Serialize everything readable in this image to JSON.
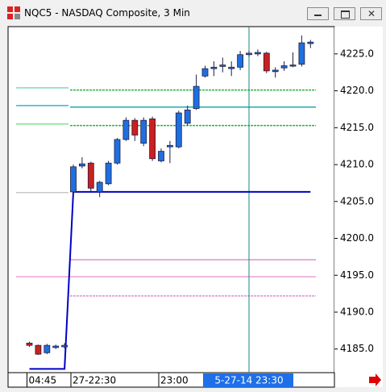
{
  "window_title": "NQC5 - NASDAQ Composite, 3 Min",
  "chart_data": {
    "type": "candlestick",
    "categories": [
      "04:45",
      null,
      null,
      null,
      null,
      "27-22:30",
      null,
      null,
      null,
      null,
      null,
      null,
      null,
      null,
      null,
      "23:00",
      null,
      null,
      null,
      null,
      null,
      null,
      null,
      null,
      null,
      "5-27-14 23:30",
      null,
      null,
      null,
      null,
      null,
      null,
      null
    ],
    "open": [
      4185.8,
      4185.5,
      4184.5,
      4185.2,
      4185.3,
      4206.3,
      4209.8,
      4210.2,
      4206.3,
      4207.4,
      4210.2,
      4213.4,
      4216,
      4212.9,
      4216.2,
      4210.5,
      4212.4,
      4212.4,
      4215.6,
      4217.6,
      4222,
      4223,
      4223.3,
      4223,
      4223.2,
      4224.9,
      4225,
      4225.1,
      4222.6,
      4223.1,
      4223.4,
      4223.6,
      4226.4
    ],
    "high": [
      4186,
      4185.6,
      4185.7,
      4185.6,
      4185.8,
      4210,
      4211,
      4210.4,
      4207.8,
      4210.5,
      4213.6,
      4216.4,
      4216.3,
      4216.4,
      4216.5,
      4212.2,
      4213.2,
      4217.3,
      4218,
      4222.2,
      4223.4,
      4224,
      4224.5,
      4224,
      4225.4,
      4225.4,
      4225.6,
      4225.3,
      4223.2,
      4224,
      4225.2,
      4227.5,
      4226.9
    ],
    "low": [
      4185.3,
      4184.2,
      4184.3,
      4185,
      4185.1,
      4206,
      4209.5,
      4206.2,
      4205.6,
      4207.2,
      4210,
      4213.2,
      4213.2,
      4212.5,
      4210.5,
      4210.3,
      4210.2,
      4212.2,
      4215.3,
      4217.4,
      4221.8,
      4222,
      4222.5,
      4222,
      4222.8,
      4224.6,
      4224.7,
      4222.4,
      4221.8,
      4222.7,
      4223.2,
      4223.3,
      4225.8
    ],
    "close": [
      4185.5,
      4184.3,
      4185.5,
      4185.4,
      4185.5,
      4209.7,
      4210.1,
      4206.8,
      4207.6,
      4210.2,
      4213.4,
      4216,
      4214,
      4216,
      4210.8,
      4211.8,
      4212.6,
      4217,
      4217.4,
      4220.6,
      4223,
      4223.2,
      4223.5,
      4223.2,
      4224.9,
      4225.1,
      4225.2,
      4222.7,
      4222.8,
      4223.4,
      4223.5,
      4226.5,
      4226.6
    ],
    "up_color": "#1f6fe0",
    "down_color": "#cc1f1f",
    "line": {
      "color": "#0000c8",
      "values": [
        4182.3,
        4182.3,
        4182.3,
        4182.3,
        4182.3,
        4206.3,
        4206.3,
        4206.3,
        4206.3,
        4206.3,
        4206.3,
        4206.3,
        4206.3,
        4206.3,
        4206.3,
        4206.3,
        4206.3,
        4206.3,
        4206.3,
        4206.3,
        4206.3,
        4206.3,
        4206.3,
        4206.3,
        4206.3,
        4206.3,
        4206.3,
        4206.3,
        4206.3,
        4206.3,
        4206.3,
        4206.3,
        4206.3
      ]
    },
    "levels": [
      {
        "value": 4220.4,
        "color": "#80d8c8",
        "span": "pre"
      },
      {
        "value": 4220.1,
        "color": "#30b040",
        "span": "day",
        "dashed": true
      },
      {
        "value": 4218.0,
        "color": "#30b8c8",
        "span": "pre"
      },
      {
        "value": 4217.8,
        "color": "#20a8b0",
        "span": "day"
      },
      {
        "value": 4215.5,
        "color": "#80e090",
        "span": "pre"
      },
      {
        "value": 4215.3,
        "color": "#30b040",
        "span": "day",
        "dashed": true
      },
      {
        "value": 4206.2,
        "color": "#c8c8c8",
        "span": "pre"
      },
      {
        "value": 4197.1,
        "color": "#e090c8",
        "span": "day"
      },
      {
        "value": 4194.8,
        "color": "#f0a0d8",
        "span": "pre"
      },
      {
        "value": 4194.8,
        "color": "#e8a0d8",
        "span": "day"
      },
      {
        "value": 4192.2,
        "color": "#e090c8",
        "span": "day",
        "dashed": true
      }
    ],
    "crosshair_index": 25,
    "ylim": [
      4181.8,
      4228.7
    ],
    "yticks": [
      {
        "value": 4185,
        "label": "4185.0"
      },
      {
        "value": 4190,
        "label": "4190.0"
      },
      {
        "value": 4195,
        "label": "4195.0"
      },
      {
        "value": 4200,
        "label": "4200.0"
      },
      {
        "value": 4205,
        "label": "4205.0"
      },
      {
        "value": 4210,
        "label": "4210.0"
      },
      {
        "value": 4215,
        "label": "4215.0"
      },
      {
        "value": 4220,
        "label": "4220.0"
      },
      {
        "value": 4225,
        "label": "4225.0"
      }
    ]
  }
}
